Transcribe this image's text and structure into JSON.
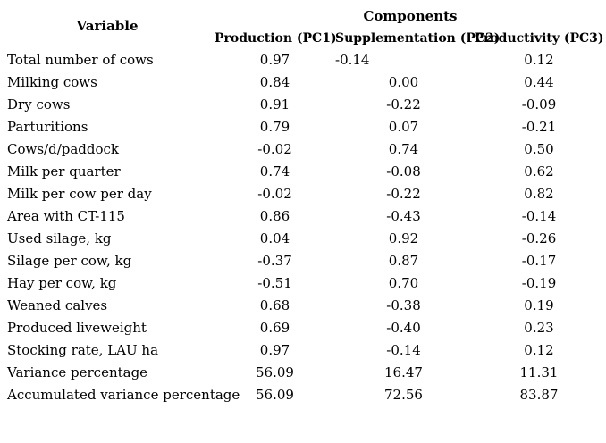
{
  "table": {
    "header": {
      "variable": "Variable",
      "components": "Components",
      "columns": [
        "Production (PC1)",
        "Supplementation (PC2)",
        "Productivity (PC3)"
      ]
    },
    "rows": [
      {
        "variable": "Total number of cows",
        "pc1": "0.97",
        "pc2": "-0.14",
        "pc3": "0.12"
      },
      {
        "variable": "Milking cows",
        "pc1": "0.84",
        "pc2": "0.00",
        "pc3": "0.44"
      },
      {
        "variable": "Dry cows",
        "pc1": "0.91",
        "pc2": "-0.22",
        "pc3": "-0.09"
      },
      {
        "variable": "Parturitions",
        "pc1": "0.79",
        "pc2": "0.07",
        "pc3": "-0.21"
      },
      {
        "variable": "Cows/d/paddock",
        "pc1": "-0.02",
        "pc2": "0.74",
        "pc3": "0.50"
      },
      {
        "variable": "Milk per quarter",
        "pc1": "0.74",
        "pc2": "-0.08",
        "pc3": "0.62"
      },
      {
        "variable": "Milk per cow per day",
        "pc1": "-0.02",
        "pc2": "-0.22",
        "pc3": "0.82"
      },
      {
        "variable": "Area with CT-115",
        "pc1": "0.86",
        "pc2": "-0.43",
        "pc3": "-0.14"
      },
      {
        "variable": "Used silage, kg",
        "pc1": "0.04",
        "pc2": "0.92",
        "pc3": "-0.26"
      },
      {
        "variable": "Silage per cow, kg",
        "pc1": "-0.37",
        "pc2": "0.87",
        "pc3": "-0.17"
      },
      {
        "variable": "Hay per cow, kg",
        "pc1": "-0.51",
        "pc2": "0.70",
        "pc3": "-0.19"
      },
      {
        "variable": "Weaned calves",
        "pc1": "0.68",
        "pc2": "-0.38",
        "pc3": "0.19"
      },
      {
        "variable": "Produced liveweight",
        "pc1": "0.69",
        "pc2": "-0.40",
        "pc3": "0.23"
      },
      {
        "variable": "Stocking rate, LAU ha",
        "pc1": "0.97",
        "pc2": "-0.14",
        "pc3": "0.12"
      },
      {
        "variable": "Variance percentage",
        "pc1": "56.09",
        "pc2": "16.47",
        "pc3": "11.31"
      },
      {
        "variable": "Accumulated variance percentage",
        "pc1": "56.09",
        "pc2": "72.56",
        "pc3": "83.87"
      }
    ]
  },
  "colors": {
    "text": "#000000",
    "background": "#ffffff"
  }
}
